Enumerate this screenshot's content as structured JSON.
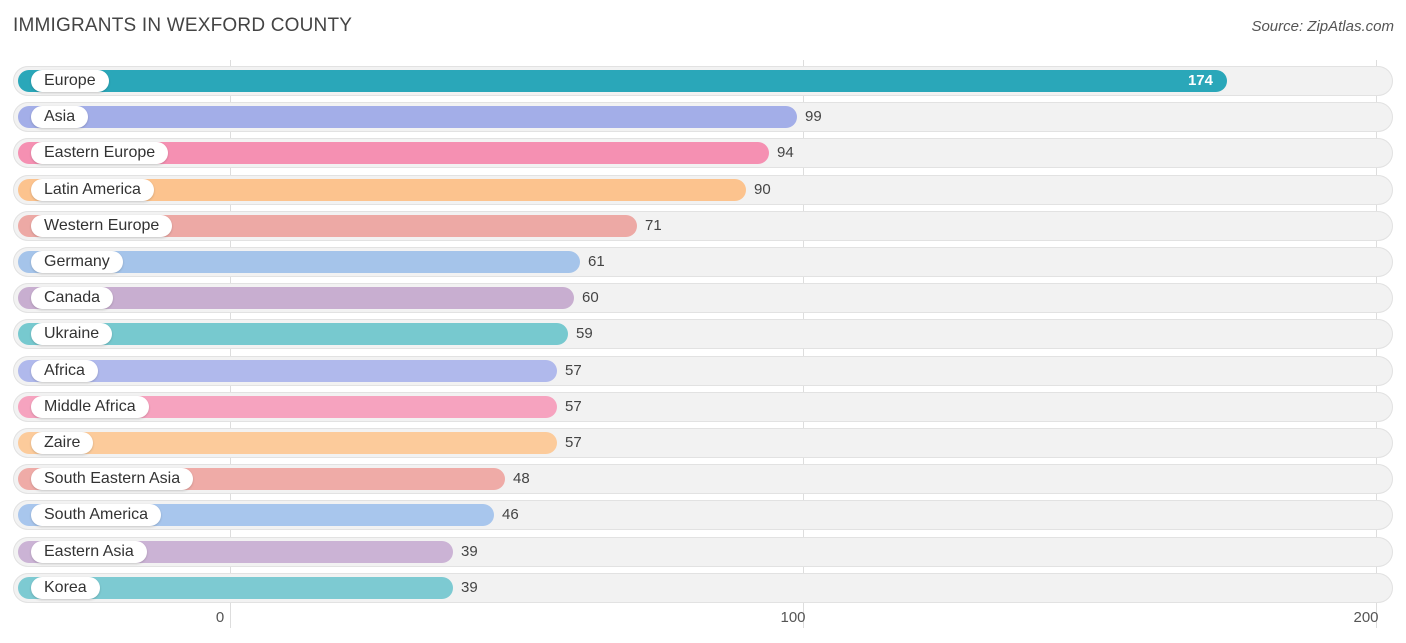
{
  "title": "IMMIGRANTS IN WEXFORD COUNTY",
  "source": "Source: ZipAtlas.com",
  "chart_data": {
    "type": "bar",
    "orientation": "horizontal",
    "title": "IMMIGRANTS IN WEXFORD COUNTY",
    "xlim": [
      0,
      200
    ],
    "x_ticks": [
      0,
      100,
      200
    ],
    "grid": true,
    "categories": [
      "Europe",
      "Asia",
      "Eastern Europe",
      "Latin America",
      "Western Europe",
      "Germany",
      "Canada",
      "Ukraine",
      "Africa",
      "Middle Africa",
      "Zaire",
      "South Eastern Asia",
      "South America",
      "Eastern Asia",
      "Korea"
    ],
    "values": [
      174,
      99,
      94,
      90,
      71,
      61,
      60,
      59,
      57,
      57,
      57,
      48,
      46,
      39,
      39
    ],
    "colors": [
      "#2aa7b9",
      "#a3aee8",
      "#f590b2",
      "#fcc38e",
      "#eda9a5",
      "#a5c4ea",
      "#c8aed0",
      "#77c9cf",
      "#b0b9ec",
      "#f6a3bf",
      "#fccb9b",
      "#efaba7",
      "#a8c6ed",
      "#cbb3d5",
      "#7dcad2"
    ]
  }
}
